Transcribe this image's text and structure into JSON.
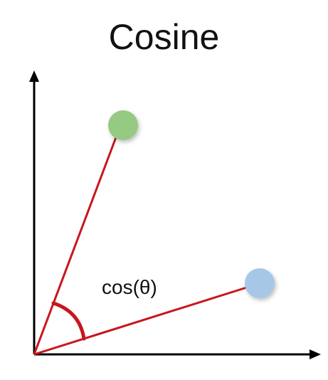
{
  "diagram": {
    "title": "Cosine",
    "angle_label": "cos(θ)",
    "colors": {
      "axis": "#000000",
      "vector": "#c8161d",
      "point_a": "#96c982",
      "point_b": "#a6c7e8",
      "text": "#111111"
    }
  }
}
